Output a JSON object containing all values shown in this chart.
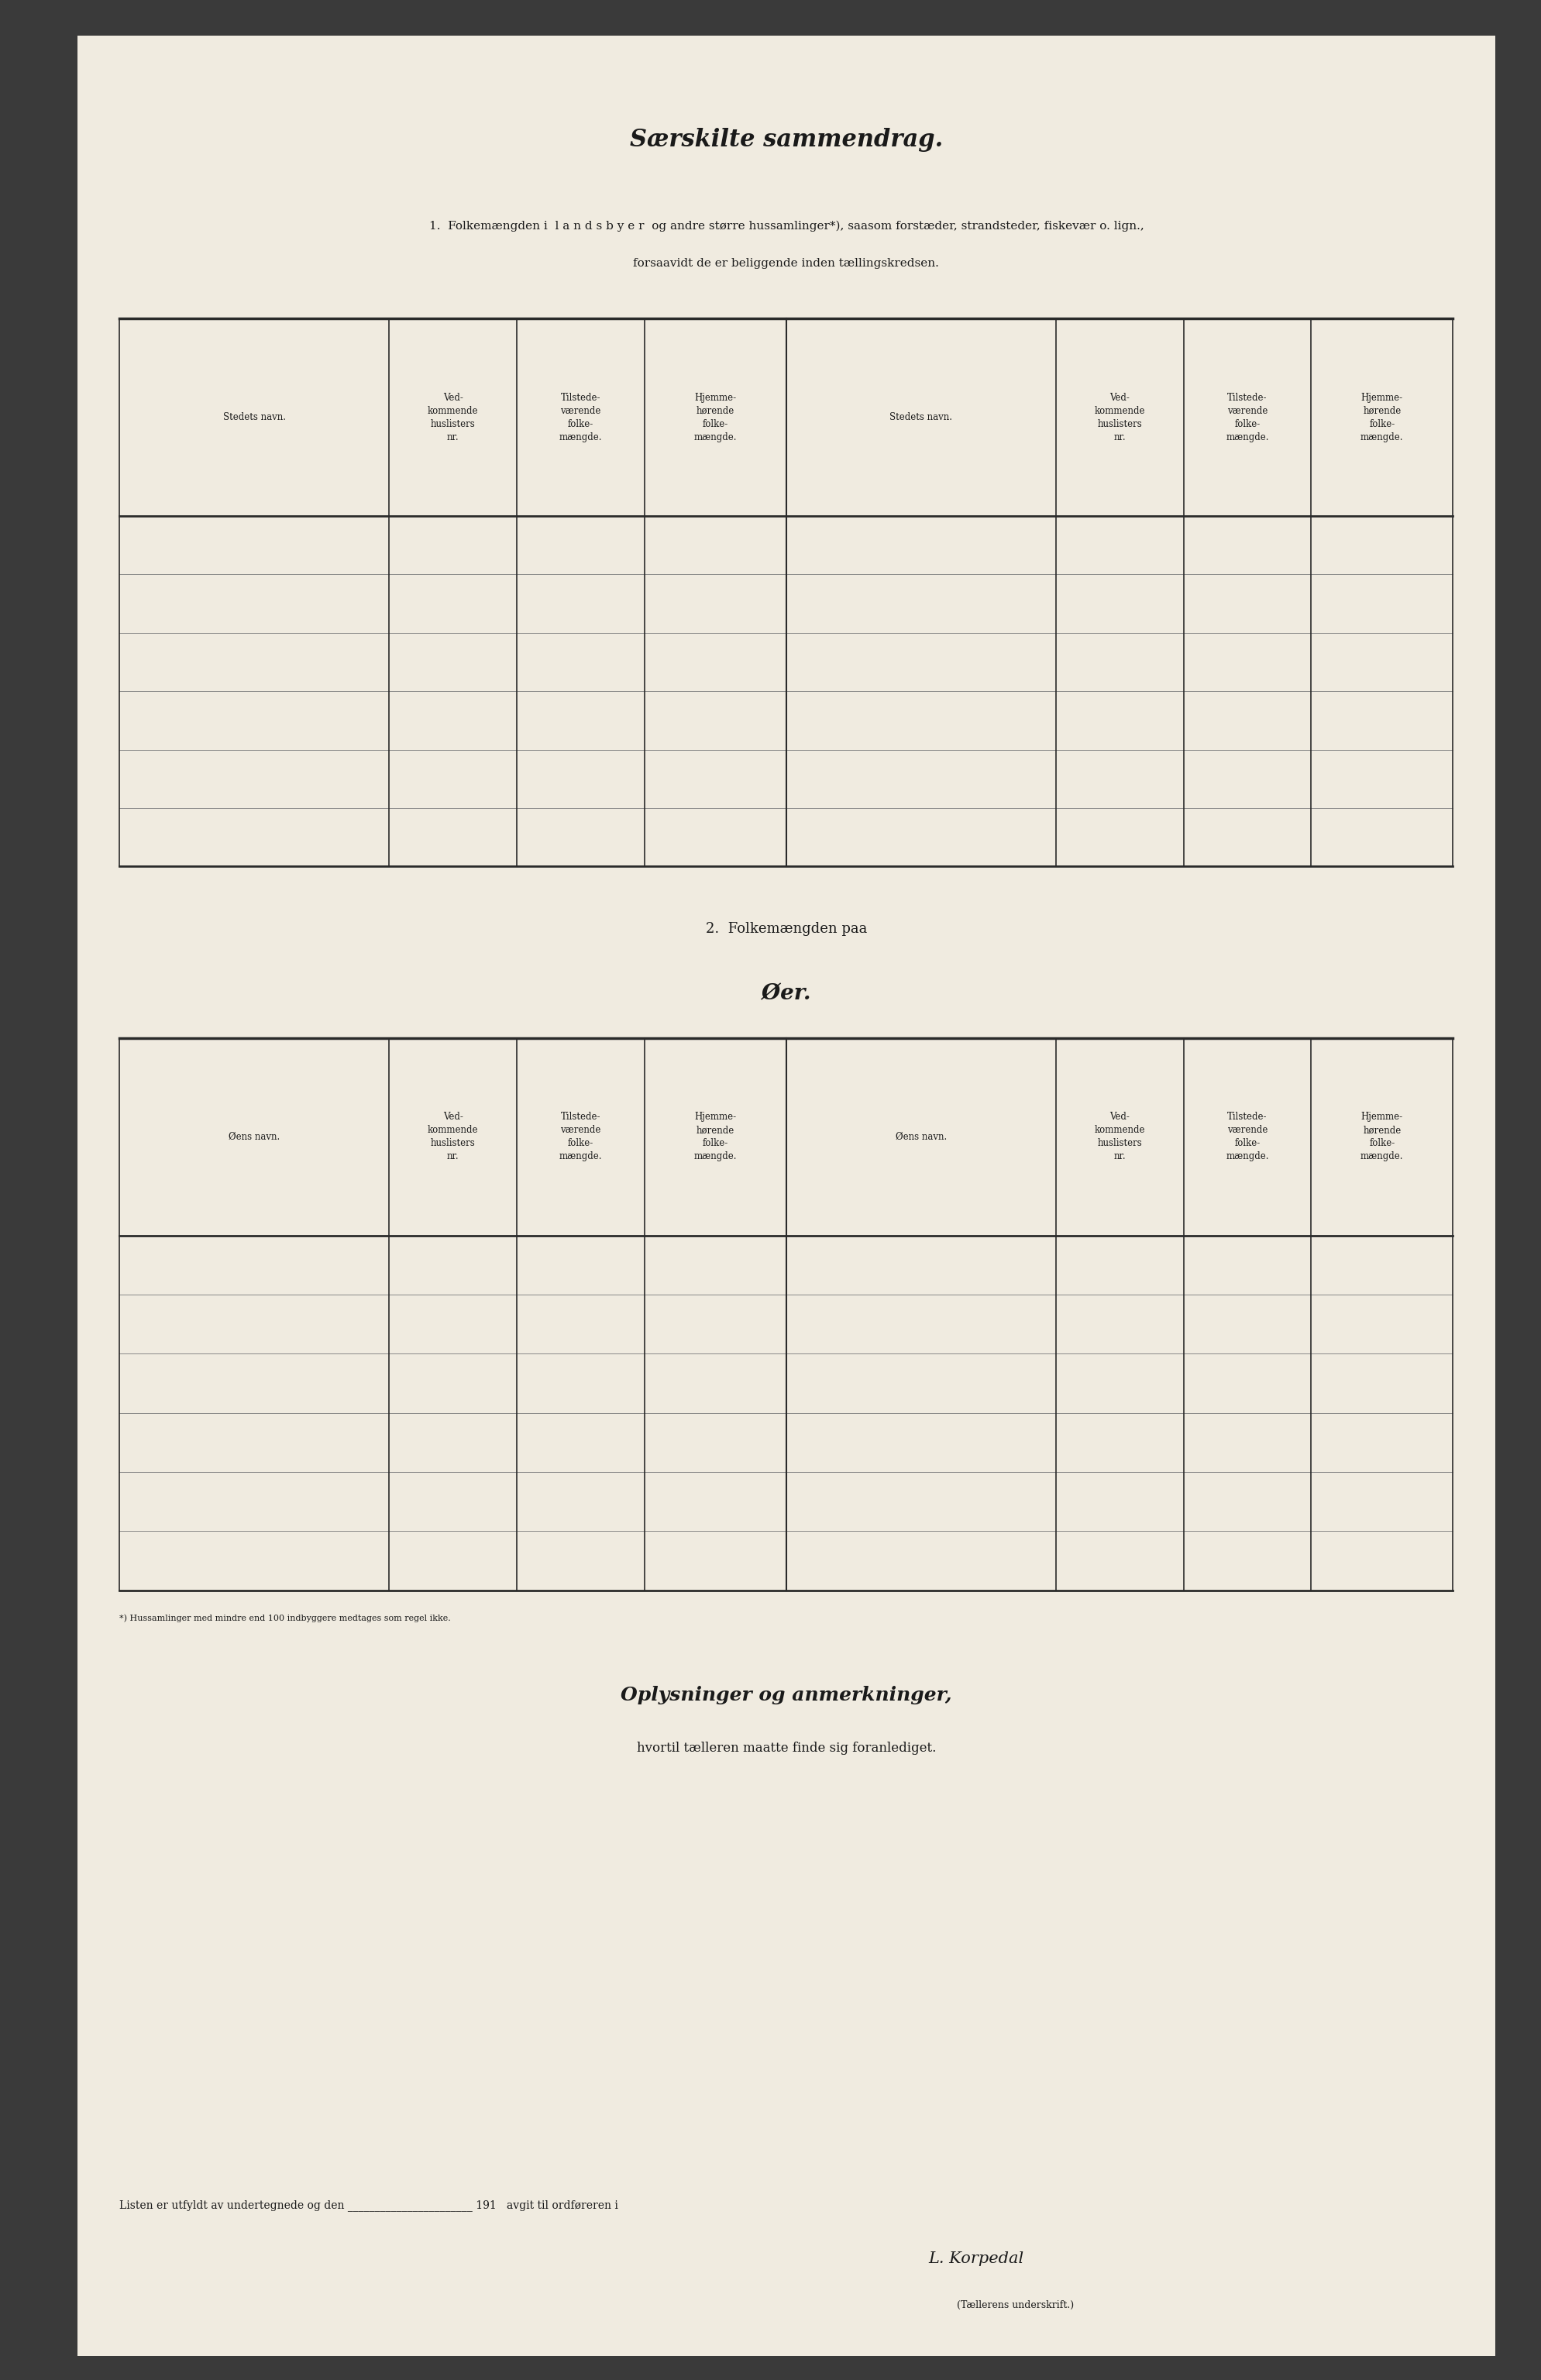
{
  "bg_color": "#f5f0e8",
  "paper_color": "#f0ebe0",
  "dark_bg": "#3a3a3a",
  "title1": "Særskilte sammendrag.",
  "section1_text1": "1.  Folkemængden i  l a n d s b y e r  og andre større hussamlinger*), saasom forstæder, strandsteder, fiskevær o. lign.,",
  "section1_text2": "forsaavidt de er beliggende inden tællingskredsen.",
  "col_headers_left": [
    "Stedets navn.",
    "Ved-\nkommende\nhuslisters\nnr.",
    "Tilstede-\nværende\nfolke-\nmængde.",
    "Hjemme-\nhørende\nfolke-\nmængde."
  ],
  "col_headers_right": [
    "Stedets navn.",
    "Ved-\nkommende\nhuslisters\nnr.",
    "Tilstede-\nværende\nfolke-\nmængde.",
    "Hjemme-\nhørende\nfolke-\nmængde."
  ],
  "section2_text1": "2.  Folkemængden paa",
  "section2_text2": "Øer.",
  "col_headers2_left": [
    "Øens navn.",
    "Ved-\nkommende\nhuslisters\nnr.",
    "Tilstede-\nværende\nfolke-\nmængde.",
    "Hjemme-\nhørende\nfolke-\nmængde."
  ],
  "col_headers2_right": [
    "Øens navn.",
    "Ved-\nkommende\nhuslisters\nnr.",
    "Tilstede-\nværende\nfolke-\nmængde.",
    "Hjemme-\nhørende\nfolke-\nmængde."
  ],
  "footer_text1": "*) Hussamlinger med mindre end 100 indbyggere medtages som regel ikke.",
  "section3_title": "Oplysninger og anmerkninger,",
  "section3_sub": "hvortil tælleren maatte finde sig foranlediget.",
  "footer_bottom": "Listen er utfyldt av undertegnede og den _______________________ 191   avgit til ordføreren i",
  "signature_text": "L. Korpedal",
  "signature_label": "(Tællerens underskrift.)",
  "line_color": "#2a2a2a",
  "text_color": "#1a1a1a",
  "grid_color": "#888888",
  "num_data_rows_table1": 6,
  "num_data_rows_table2": 6
}
